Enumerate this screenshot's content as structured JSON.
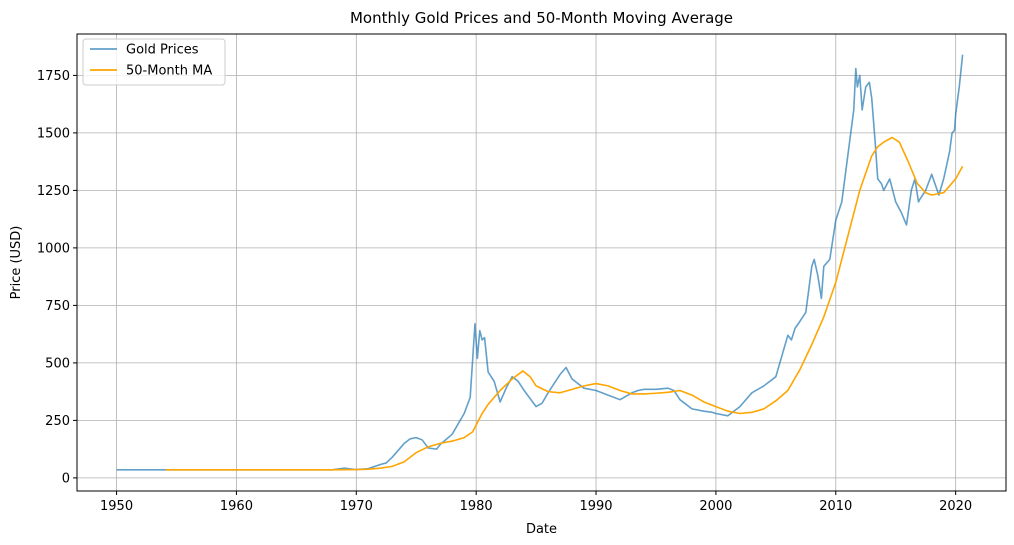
{
  "chart_data": {
    "type": "line",
    "title": "Monthly Gold Prices and 50-Month Moving Average",
    "xlabel": "Date",
    "ylabel": "Price (USD)",
    "xlim": [
      1946.7,
      2024.2
    ],
    "ylim": [
      -57,
      1930
    ],
    "x_ticks": [
      1950,
      1960,
      1970,
      1980,
      1990,
      2000,
      2010,
      2020
    ],
    "y_ticks": [
      0,
      250,
      500,
      750,
      1000,
      1250,
      1500,
      1750
    ],
    "grid": true,
    "legend_position": "top-left",
    "series": [
      {
        "name": "Gold Prices",
        "color": "#1f77b4",
        "opacity": 0.7,
        "x": [
          1950,
          1955,
          1960,
          1965,
          1968,
          1969,
          1970,
          1971,
          1972,
          1972.5,
          1973,
          1973.5,
          1974,
          1974.5,
          1975,
          1975.5,
          1976,
          1976.7,
          1977,
          1978,
          1979,
          1979.5,
          1979.9,
          1980.1,
          1980.3,
          1980.5,
          1980.7,
          1981,
          1981.5,
          1982,
          1982.5,
          1983,
          1983.5,
          1984,
          1985,
          1985.5,
          1986,
          1987,
          1987.5,
          1988,
          1988.5,
          1989,
          1990,
          1991,
          1992,
          1993,
          1993.5,
          1994,
          1995,
          1996,
          1996.5,
          1997,
          1998,
          1999,
          1999.7,
          2000,
          2001,
          2002,
          2003,
          2004,
          2005,
          2006,
          2006.3,
          2006.6,
          2007,
          2007.5,
          2008,
          2008.2,
          2008.5,
          2008.8,
          2009,
          2009.5,
          2010,
          2010.5,
          2011,
          2011.5,
          2011.67,
          2011.8,
          2012,
          2012.2,
          2012.5,
          2012.8,
          2013,
          2013.3,
          2013.5,
          2013.8,
          2014,
          2014.5,
          2015,
          2015.5,
          2015.9,
          2016.3,
          2016.6,
          2016.9,
          2017,
          2017.5,
          2018,
          2018.6,
          2019,
          2019.5,
          2019.7,
          2019.9,
          2020,
          2020.3,
          2020.58
        ],
        "y": [
          35,
          35,
          35,
          35,
          35,
          42,
          36,
          40,
          58,
          65,
          90,
          120,
          150,
          170,
          175,
          165,
          130,
          125,
          145,
          190,
          280,
          350,
          670,
          520,
          640,
          600,
          610,
          460,
          420,
          330,
          390,
          440,
          420,
          380,
          310,
          325,
          370,
          450,
          480,
          430,
          410,
          390,
          380,
          360,
          340,
          370,
          380,
          385,
          385,
          390,
          380,
          340,
          300,
          290,
          285,
          280,
          270,
          310,
          370,
          400,
          440,
          620,
          600,
          650,
          680,
          720,
          920,
          950,
          880,
          780,
          920,
          950,
          1120,
          1200,
          1400,
          1600,
          1780,
          1700,
          1750,
          1600,
          1700,
          1720,
          1650,
          1450,
          1300,
          1280,
          1250,
          1300,
          1200,
          1150,
          1100,
          1250,
          1300,
          1200,
          1210,
          1250,
          1320,
          1230,
          1300,
          1420,
          1500,
          1510,
          1580,
          1700,
          1840
        ]
      },
      {
        "name": "50-Month MA",
        "color": "#ffa500",
        "opacity": 1,
        "x": [
          1954.1,
          1960,
          1968,
          1970,
          1971,
          1972,
          1973,
          1974,
          1975,
          1976,
          1977,
          1978,
          1979,
          1979.7,
          1980.5,
          1981,
          1982,
          1983,
          1983.9,
          1984.5,
          1985,
          1986,
          1987,
          1988,
          1989,
          1990,
          1991,
          1992,
          1993,
          1994,
          1995,
          1996,
          1997,
          1998,
          1999,
          2000,
          2001,
          2002,
          2003,
          2004,
          2005,
          2006,
          2007,
          2008,
          2009,
          2010,
          2011,
          2012,
          2013,
          2013.5,
          2014,
          2014.7,
          2015.3,
          2016,
          2016.8,
          2017.5,
          2018,
          2018.5,
          2019,
          2019.5,
          2020,
          2020.58
        ],
        "y": [
          35,
          35,
          35,
          36,
          38,
          42,
          50,
          70,
          110,
          135,
          150,
          160,
          175,
          200,
          280,
          320,
          380,
          430,
          465,
          440,
          400,
          375,
          370,
          385,
          400,
          410,
          400,
          380,
          365,
          365,
          368,
          372,
          380,
          360,
          330,
          310,
          290,
          280,
          285,
          300,
          335,
          380,
          470,
          580,
          700,
          850,
          1050,
          1250,
          1400,
          1440,
          1460,
          1480,
          1460,
          1380,
          1280,
          1240,
          1230,
          1235,
          1240,
          1270,
          1300,
          1355
        ]
      }
    ]
  }
}
